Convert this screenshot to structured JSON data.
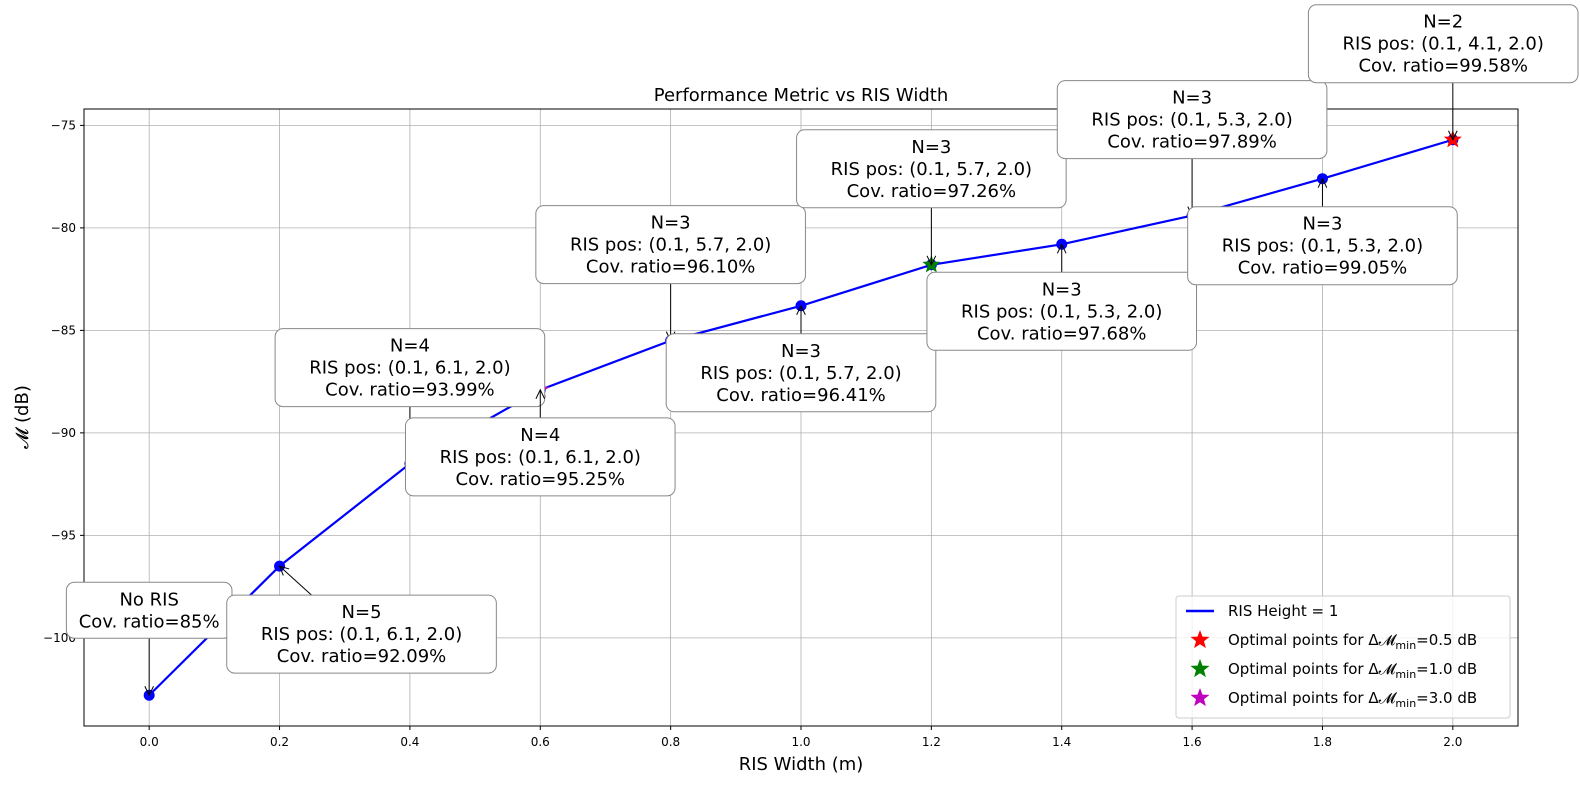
{
  "chart_data": {
    "type": "line",
    "title": "Performance Metric vs RIS Width",
    "xlabel": "RIS Width (m)",
    "ylabel": "𝓜 (dB)",
    "xlim": [
      -0.1,
      2.1
    ],
    "ylim": [
      -104.3,
      -74.2
    ],
    "xticks": [
      0.0,
      0.2,
      0.4,
      0.6,
      0.8,
      1.0,
      1.2,
      1.4,
      1.6,
      1.8,
      2.0
    ],
    "xtick_labels": [
      "0.0",
      "0.2",
      "0.4",
      "0.6",
      "0.8",
      "1.0",
      "1.2",
      "1.4",
      "1.6",
      "1.8",
      "2.0"
    ],
    "yticks": [
      -100,
      -95,
      -90,
      -85,
      -80,
      -75
    ],
    "ytick_labels": [
      "−100",
      "−95",
      "−90",
      "−85",
      "−80",
      "−75"
    ],
    "grid": true,
    "legend_position": "bottom-right",
    "series": [
      {
        "name": "RIS Height = 1",
        "color": "#0000ff",
        "x": [
          0.0,
          0.2,
          0.4,
          0.6,
          0.8,
          1.0,
          1.2,
          1.4,
          1.6,
          1.8,
          2.0
        ],
        "y": [
          -102.8,
          -96.5,
          -91.5,
          -87.9,
          -85.5,
          -83.8,
          -81.8,
          -80.8,
          -79.4,
          -77.6,
          -75.7
        ]
      }
    ],
    "optimal_points": [
      {
        "label": "Optimal points for Δ",
        "sub": "min",
        "value_text": "=0.5 dB",
        "color": "#ff0000",
        "x": 2.0,
        "y": -75.7
      },
      {
        "label": "Optimal points for Δ",
        "sub": "min",
        "value_text": "=1.0 dB",
        "color": "#008000",
        "x": 1.2,
        "y": -81.8
      },
      {
        "label": "Optimal points for Δ",
        "sub": "min",
        "value_text": "=3.0 dB",
        "color": "#bf00bf",
        "x": 0.6,
        "y": -87.9
      }
    ],
    "annotations": [
      {
        "x": 0.0,
        "y": -102.8,
        "position": "above",
        "lines": [
          "No RIS",
          "Cov. ratio=85%"
        ]
      },
      {
        "x": 0.2,
        "y": -96.5,
        "position": "below-right",
        "lines": [
          "N=5",
          "RIS pos: (0.1, 6.1, 2.0)",
          "Cov. ratio=92.09%"
        ]
      },
      {
        "x": 0.4,
        "y": -91.5,
        "position": "above",
        "lines": [
          "N=4",
          "RIS pos: (0.1, 6.1, 2.0)",
          "Cov. ratio=93.99%"
        ]
      },
      {
        "x": 0.6,
        "y": -87.9,
        "position": "below",
        "lines": [
          "N=4",
          "RIS pos: (0.1, 6.1, 2.0)",
          "Cov. ratio=95.25%"
        ]
      },
      {
        "x": 0.8,
        "y": -85.5,
        "position": "above",
        "lines": [
          "N=3",
          "RIS pos: (0.1, 5.7, 2.0)",
          "Cov. ratio=96.10%"
        ]
      },
      {
        "x": 1.0,
        "y": -83.8,
        "position": "below",
        "lines": [
          "N=3",
          "RIS pos: (0.1, 5.7, 2.0)",
          "Cov. ratio=96.41%"
        ]
      },
      {
        "x": 1.2,
        "y": -81.8,
        "position": "above",
        "lines": [
          "N=3",
          "RIS pos: (0.1, 5.7, 2.0)",
          "Cov. ratio=97.26%"
        ]
      },
      {
        "x": 1.4,
        "y": -80.8,
        "position": "below",
        "lines": [
          "N=3",
          "RIS pos: (0.1, 5.3, 2.0)",
          "Cov. ratio=97.68%"
        ]
      },
      {
        "x": 1.6,
        "y": -79.4,
        "position": "above",
        "lines": [
          "N=3",
          "RIS pos: (0.1, 5.3, 2.0)",
          "Cov. ratio=97.89%"
        ]
      },
      {
        "x": 1.8,
        "y": -77.6,
        "position": "below",
        "lines": [
          "N=3",
          "RIS pos: (0.1, 5.3, 2.0)",
          "Cov. ratio=99.05%"
        ]
      },
      {
        "x": 2.0,
        "y": -75.7,
        "position": "above",
        "lines": [
          "N=2",
          "RIS pos: (0.1, 4.1, 2.0)",
          "Cov. ratio=99.58%"
        ]
      }
    ]
  }
}
